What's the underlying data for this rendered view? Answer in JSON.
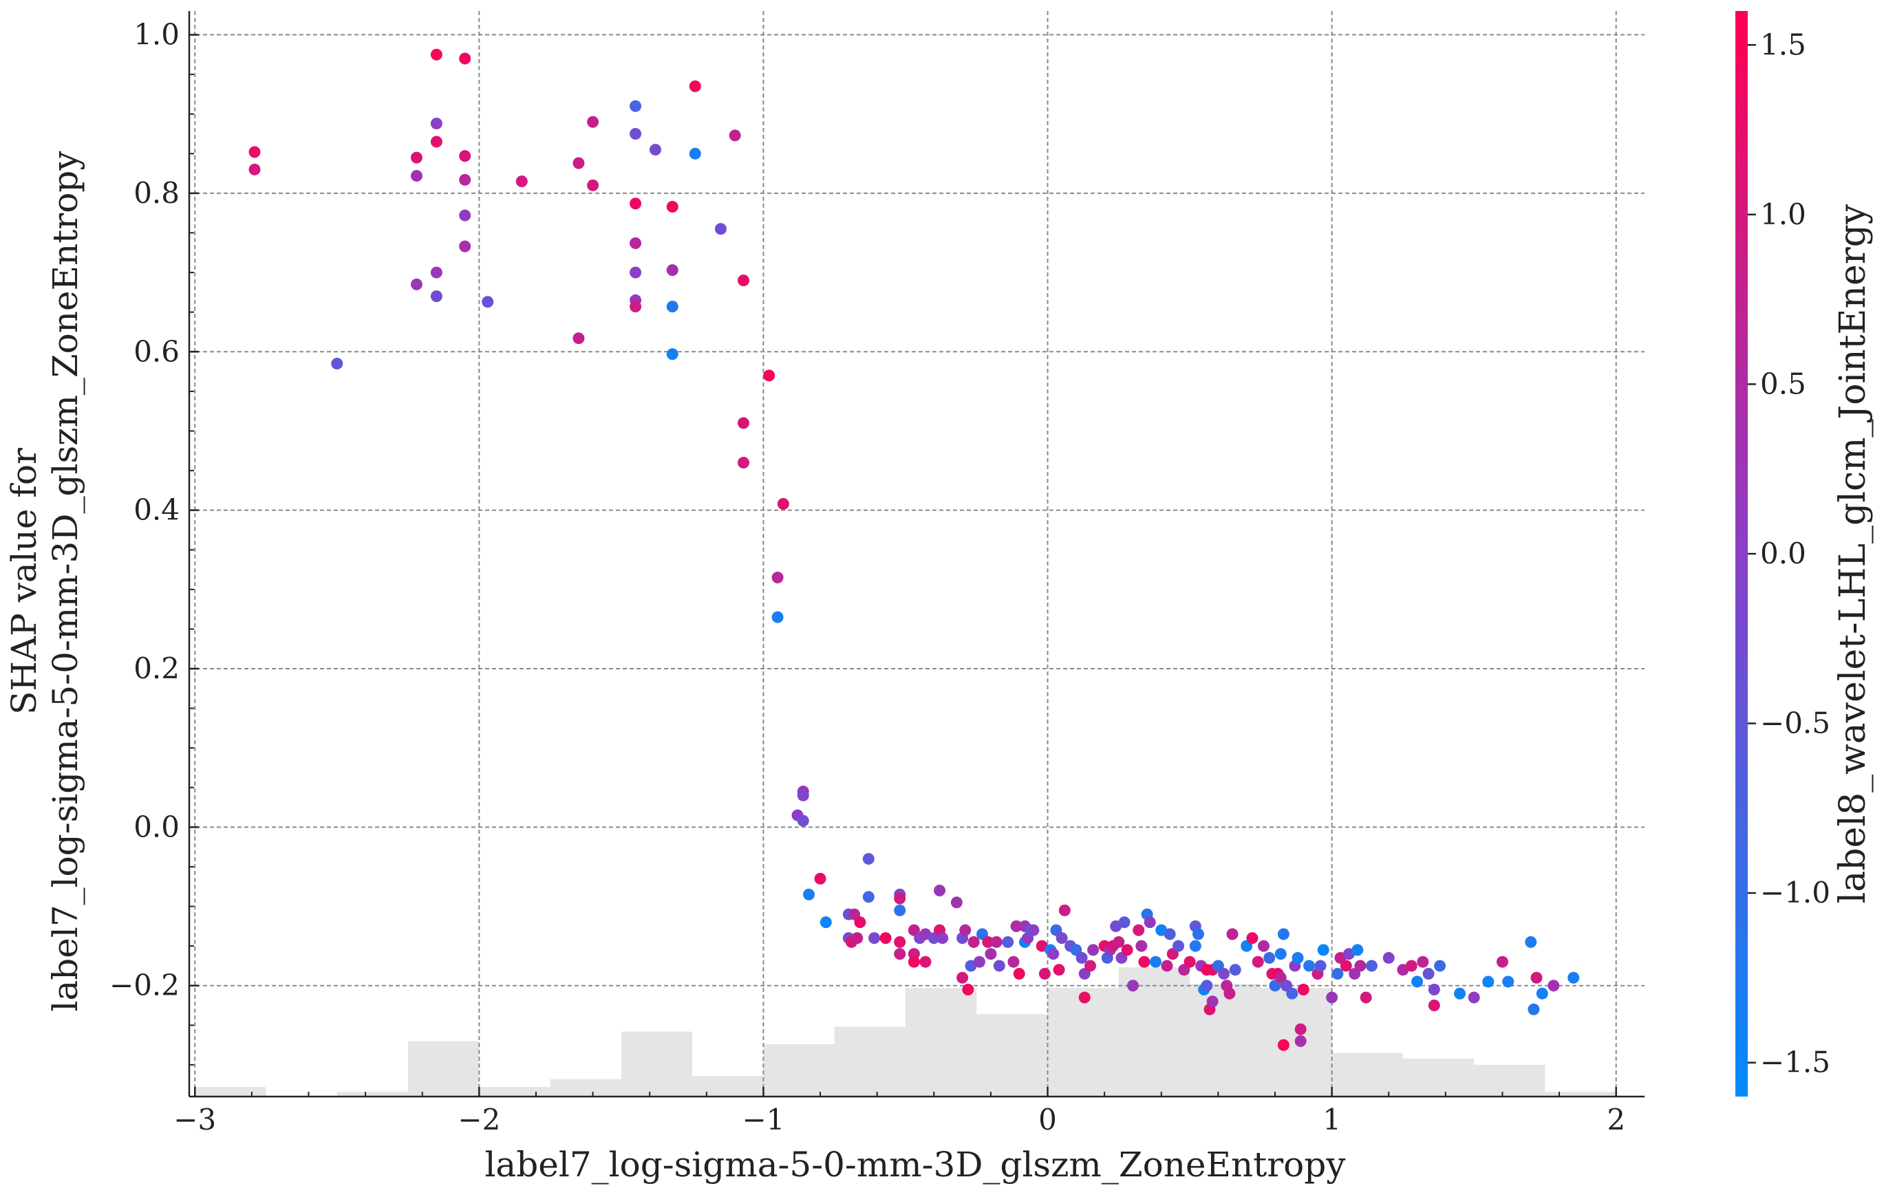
{
  "chart_data": {
    "type": "scatter",
    "title": "",
    "xlabel": "label7_log-sigma-5-0-mm-3D_glszm_ZoneEntropy",
    "ylabel_lines": [
      "SHAP value for",
      "label7_log-sigma-5-0-mm-3D_glszm_ZoneEntropy"
    ],
    "xlim": [
      -3.02,
      2.1
    ],
    "ylim": [
      -0.34,
      1.03
    ],
    "x_ticks": [
      -3,
      -2,
      -1,
      0,
      1,
      2
    ],
    "x_tick_labels": [
      "−3",
      "−2",
      "−1",
      "0",
      "1",
      "2"
    ],
    "y_ticks": [
      -0.2,
      0.0,
      0.2,
      0.4,
      0.6,
      0.8,
      1.0
    ],
    "y_tick_labels": [
      "−0.2",
      "0.0",
      "0.2",
      "0.4",
      "0.6",
      "0.8",
      "1.0"
    ],
    "grid": true,
    "colorbar": {
      "label": "label8_wavelet-LHL_glcm_JointEnergy",
      "range": [
        -1.6,
        1.6
      ],
      "ticks": [
        -1.5,
        -1.0,
        -0.5,
        0.0,
        0.5,
        1.0,
        1.5
      ],
      "tick_labels": [
        "−1.5",
        "−1.0",
        "−0.5",
        "0.0",
        "0.5",
        "1.0",
        "1.5"
      ],
      "color_low": "#008bfb",
      "color_mid": "#8a3fc8",
      "color_high": "#ff0051"
    },
    "histogram": {
      "color": "#e5e5e5",
      "bins": [
        {
          "x0": -3.0,
          "x1": -2.75,
          "h": 0.012
        },
        {
          "x0": -2.5,
          "x1": -2.25,
          "h": 0.006
        },
        {
          "x0": -2.25,
          "x1": -2.0,
          "h": 0.07
        },
        {
          "x0": -2.0,
          "x1": -1.75,
          "h": 0.012
        },
        {
          "x0": -1.75,
          "x1": -1.5,
          "h": 0.022
        },
        {
          "x0": -1.5,
          "x1": -1.25,
          "h": 0.082
        },
        {
          "x0": -1.25,
          "x1": -1.0,
          "h": 0.026
        },
        {
          "x0": -1.0,
          "x1": -0.75,
          "h": 0.066
        },
        {
          "x0": -0.75,
          "x1": -0.5,
          "h": 0.088
        },
        {
          "x0": -0.5,
          "x1": -0.25,
          "h": 0.137
        },
        {
          "x0": -0.25,
          "x1": 0.0,
          "h": 0.104
        },
        {
          "x0": 0.0,
          "x1": 0.25,
          "h": 0.137
        },
        {
          "x0": 0.25,
          "x1": 0.5,
          "h": 0.163
        },
        {
          "x0": 0.5,
          "x1": 0.75,
          "h": 0.142
        },
        {
          "x0": 0.75,
          "x1": 1.0,
          "h": 0.137
        },
        {
          "x0": 1.0,
          "x1": 1.25,
          "h": 0.055
        },
        {
          "x0": 1.25,
          "x1": 1.5,
          "h": 0.048
        },
        {
          "x0": 1.5,
          "x1": 1.75,
          "h": 0.04
        },
        {
          "x0": 1.75,
          "x1": 2.0,
          "h": 0.006
        }
      ]
    },
    "points": [
      [
        -2.79,
        0.852,
        1.3
      ],
      [
        -2.79,
        0.83,
        1.0
      ],
      [
        -2.5,
        0.585,
        -0.5
      ],
      [
        -2.22,
        0.845,
        1.1
      ],
      [
        -2.22,
        0.822,
        0.3
      ],
      [
        -2.22,
        0.685,
        0.2
      ],
      [
        -2.15,
        0.975,
        1.5
      ],
      [
        -2.15,
        0.888,
        0.0
      ],
      [
        -2.15,
        0.865,
        1.2
      ],
      [
        -2.15,
        0.7,
        0.2
      ],
      [
        -2.15,
        0.67,
        -0.3
      ],
      [
        -2.05,
        0.97,
        1.4
      ],
      [
        -2.05,
        0.847,
        1.1
      ],
      [
        -2.05,
        0.817,
        0.6
      ],
      [
        -2.05,
        0.772,
        0.1
      ],
      [
        -2.05,
        0.733,
        0.4
      ],
      [
        -1.97,
        0.663,
        -0.4
      ],
      [
        -1.85,
        0.815,
        1.0
      ],
      [
        -1.65,
        0.838,
        0.9
      ],
      [
        -1.65,
        0.617,
        0.8
      ],
      [
        -1.6,
        0.89,
        0.8
      ],
      [
        -1.6,
        0.81,
        1.0
      ],
      [
        -1.45,
        0.91,
        -0.8
      ],
      [
        -1.45,
        0.875,
        -0.3
      ],
      [
        -1.45,
        0.787,
        1.4
      ],
      [
        -1.45,
        0.737,
        0.6
      ],
      [
        -1.45,
        0.7,
        0.0
      ],
      [
        -1.45,
        0.665,
        0.2
      ],
      [
        -1.45,
        0.657,
        0.9
      ],
      [
        -1.38,
        0.855,
        -0.2
      ],
      [
        -1.32,
        0.783,
        1.4
      ],
      [
        -1.32,
        0.703,
        0.4
      ],
      [
        -1.32,
        0.657,
        -1.2
      ],
      [
        -1.32,
        0.597,
        -1.4
      ],
      [
        -1.24,
        0.935,
        1.5
      ],
      [
        -1.24,
        0.85,
        -1.3
      ],
      [
        -1.15,
        0.755,
        -0.3
      ],
      [
        -1.1,
        0.873,
        0.7
      ],
      [
        -1.07,
        0.69,
        1.3
      ],
      [
        -1.07,
        0.51,
        1.1
      ],
      [
        -1.07,
        0.46,
        1.0
      ],
      [
        -0.98,
        0.57,
        1.5
      ],
      [
        -0.95,
        0.315,
        0.6
      ],
      [
        -0.95,
        0.265,
        -1.3
      ],
      [
        -0.93,
        0.408,
        1.2
      ],
      [
        -0.88,
        0.015,
        0.0
      ],
      [
        -0.86,
        0.045,
        0.2
      ],
      [
        -0.86,
        0.04,
        -0.1
      ],
      [
        -0.86,
        0.008,
        -0.3
      ],
      [
        -0.84,
        -0.085,
        -1.3
      ],
      [
        -0.8,
        -0.065,
        1.3
      ],
      [
        -0.78,
        -0.12,
        -1.4
      ],
      [
        -0.7,
        -0.11,
        -0.4
      ],
      [
        -0.7,
        -0.14,
        -0.2
      ],
      [
        -0.69,
        -0.145,
        1.1
      ],
      [
        -0.68,
        -0.11,
        0.6
      ],
      [
        -0.67,
        -0.14,
        0.8
      ],
      [
        -0.66,
        -0.12,
        1.3
      ],
      [
        -0.63,
        -0.04,
        -0.5
      ],
      [
        -0.63,
        -0.088,
        -0.8
      ],
      [
        -0.61,
        -0.14,
        -0.2
      ],
      [
        -0.57,
        -0.14,
        1.4
      ],
      [
        -0.52,
        -0.085,
        0.0
      ],
      [
        -0.52,
        -0.09,
        1.0
      ],
      [
        -0.52,
        -0.105,
        -1.1
      ],
      [
        -0.52,
        -0.145,
        1.2
      ],
      [
        -0.52,
        -0.16,
        0.8
      ],
      [
        -0.47,
        -0.13,
        0.8
      ],
      [
        -0.47,
        -0.16,
        0.9
      ],
      [
        -0.47,
        -0.17,
        1.4
      ],
      [
        -0.45,
        -0.14,
        -0.1
      ],
      [
        -0.43,
        -0.135,
        0.2
      ],
      [
        -0.43,
        -0.17,
        1.1
      ],
      [
        -0.4,
        -0.14,
        -0.3
      ],
      [
        -0.38,
        -0.08,
        0.2
      ],
      [
        -0.38,
        -0.13,
        1.2
      ],
      [
        -0.37,
        -0.14,
        0.0
      ],
      [
        -0.32,
        -0.095,
        0.3
      ],
      [
        -0.3,
        -0.14,
        -0.3
      ],
      [
        -0.3,
        -0.19,
        1.0
      ],
      [
        -0.29,
        -0.13,
        0.6
      ],
      [
        -0.28,
        -0.205,
        1.4
      ],
      [
        -0.27,
        -0.175,
        -0.6
      ],
      [
        -0.26,
        -0.145,
        0.8
      ],
      [
        -0.24,
        -0.17,
        0.1
      ],
      [
        -0.23,
        -0.135,
        -1.1
      ],
      [
        -0.21,
        -0.145,
        1.0
      ],
      [
        -0.2,
        -0.16,
        0.4
      ],
      [
        -0.18,
        -0.145,
        0.7
      ],
      [
        -0.17,
        -0.175,
        -0.3
      ],
      [
        -0.14,
        -0.145,
        -0.6
      ],
      [
        -0.12,
        -0.17,
        0.6
      ],
      [
        -0.11,
        -0.125,
        0.5
      ],
      [
        -0.1,
        -0.185,
        1.4
      ],
      [
        -0.08,
        -0.145,
        -1.4
      ],
      [
        -0.08,
        -0.125,
        0.3
      ],
      [
        -0.07,
        -0.14,
        0.1
      ],
      [
        -0.06,
        -0.13,
        -0.7
      ],
      [
        -0.05,
        -0.13,
        0.0
      ],
      [
        -0.02,
        -0.15,
        1.2
      ],
      [
        -0.01,
        -0.185,
        1.1
      ],
      [
        0.01,
        -0.155,
        -1.4
      ],
      [
        0.02,
        -0.16,
        0.0
      ],
      [
        0.03,
        -0.13,
        -0.9
      ],
      [
        0.04,
        -0.18,
        1.2
      ],
      [
        0.05,
        -0.14,
        -0.2
      ],
      [
        0.06,
        -0.105,
        0.9
      ],
      [
        0.08,
        -0.15,
        -0.4
      ],
      [
        0.1,
        -0.155,
        -1.0
      ],
      [
        0.12,
        -0.165,
        -0.3
      ],
      [
        0.13,
        -0.185,
        0.0
      ],
      [
        0.13,
        -0.215,
        1.3
      ],
      [
        0.15,
        -0.175,
        1.0
      ],
      [
        0.16,
        -0.155,
        0.2
      ],
      [
        0.2,
        -0.15,
        1.3
      ],
      [
        0.21,
        -0.165,
        -0.7
      ],
      [
        0.22,
        -0.155,
        0.1
      ],
      [
        0.23,
        -0.15,
        1.0
      ],
      [
        0.24,
        -0.125,
        -0.3
      ],
      [
        0.25,
        -0.145,
        0.8
      ],
      [
        0.26,
        -0.165,
        0.0
      ],
      [
        0.27,
        -0.12,
        -0.5
      ],
      [
        0.28,
        -0.155,
        1.2
      ],
      [
        0.3,
        -0.2,
        0.2
      ],
      [
        0.32,
        -0.13,
        1.0
      ],
      [
        0.33,
        -0.15,
        0.4
      ],
      [
        0.34,
        -0.17,
        1.4
      ],
      [
        0.35,
        -0.11,
        -1.1
      ],
      [
        0.36,
        -0.12,
        0.1
      ],
      [
        0.38,
        -0.17,
        -1.3
      ],
      [
        0.4,
        -0.13,
        -1.4
      ],
      [
        0.42,
        -0.175,
        0.8
      ],
      [
        0.43,
        -0.135,
        -0.7
      ],
      [
        0.44,
        -0.16,
        1.0
      ],
      [
        0.46,
        -0.15,
        -0.5
      ],
      [
        0.48,
        -0.18,
        0.6
      ],
      [
        0.5,
        -0.17,
        1.2
      ],
      [
        0.52,
        -0.125,
        -0.5
      ],
      [
        0.52,
        -0.15,
        -1.2
      ],
      [
        0.53,
        -0.135,
        -1.1
      ],
      [
        0.54,
        -0.175,
        0.2
      ],
      [
        0.55,
        -0.205,
        -1.4
      ],
      [
        0.56,
        -0.18,
        1.4
      ],
      [
        0.56,
        -0.2,
        -0.6
      ],
      [
        0.57,
        -0.23,
        1.2
      ],
      [
        0.58,
        -0.18,
        1.3
      ],
      [
        0.58,
        -0.22,
        0.3
      ],
      [
        0.6,
        -0.175,
        -1.0
      ],
      [
        0.62,
        -0.185,
        -0.2
      ],
      [
        0.63,
        -0.2,
        0.7
      ],
      [
        0.64,
        -0.21,
        0.8
      ],
      [
        0.65,
        -0.135,
        0.7
      ],
      [
        0.66,
        -0.18,
        -0.6
      ],
      [
        0.7,
        -0.15,
        -1.4
      ],
      [
        0.72,
        -0.14,
        1.3
      ],
      [
        0.74,
        -0.17,
        1.0
      ],
      [
        0.76,
        -0.15,
        0.5
      ],
      [
        0.78,
        -0.165,
        -0.9
      ],
      [
        0.79,
        -0.185,
        1.2
      ],
      [
        0.8,
        -0.2,
        -1.0
      ],
      [
        0.81,
        -0.185,
        1.4
      ],
      [
        0.82,
        -0.16,
        -1.3
      ],
      [
        0.82,
        -0.19,
        0.6
      ],
      [
        0.83,
        -0.135,
        -1.2
      ],
      [
        0.83,
        -0.275,
        1.5
      ],
      [
        0.84,
        -0.2,
        -0.3
      ],
      [
        0.86,
        -0.21,
        -0.8
      ],
      [
        0.87,
        -0.175,
        0.0
      ],
      [
        0.88,
        -0.165,
        -1.3
      ],
      [
        0.89,
        -0.255,
        0.9
      ],
      [
        0.89,
        -0.27,
        0.4
      ],
      [
        0.9,
        -0.205,
        1.4
      ],
      [
        0.92,
        -0.175,
        -1.2
      ],
      [
        0.95,
        -0.185,
        0.9
      ],
      [
        0.96,
        -0.175,
        -0.6
      ],
      [
        0.97,
        -0.155,
        -1.5
      ],
      [
        1.0,
        -0.215,
        0.2
      ],
      [
        1.02,
        -0.185,
        -1.0
      ],
      [
        1.03,
        -0.165,
        0.8
      ],
      [
        1.05,
        -0.175,
        1.2
      ],
      [
        1.06,
        -0.16,
        -0.1
      ],
      [
        1.08,
        -0.185,
        0.3
      ],
      [
        1.09,
        -0.155,
        -1.4
      ],
      [
        1.1,
        -0.175,
        0.6
      ],
      [
        1.12,
        -0.215,
        1.0
      ],
      [
        1.14,
        -0.175,
        -0.7
      ],
      [
        1.2,
        -0.165,
        -0.1
      ],
      [
        1.25,
        -0.18,
        0.5
      ],
      [
        1.28,
        -0.175,
        1.0
      ],
      [
        1.3,
        -0.195,
        -1.4
      ],
      [
        1.32,
        -0.17,
        0.7
      ],
      [
        1.34,
        -0.185,
        -0.4
      ],
      [
        1.36,
        -0.205,
        -0.2
      ],
      [
        1.36,
        -0.225,
        1.1
      ],
      [
        1.38,
        -0.175,
        -0.9
      ],
      [
        1.45,
        -0.21,
        -1.4
      ],
      [
        1.5,
        -0.215,
        0.1
      ],
      [
        1.55,
        -0.195,
        -1.5
      ],
      [
        1.6,
        -0.17,
        0.8
      ],
      [
        1.62,
        -0.195,
        -1.3
      ],
      [
        1.7,
        -0.145,
        -1.3
      ],
      [
        1.71,
        -0.23,
        -1.2
      ],
      [
        1.72,
        -0.19,
        1.0
      ],
      [
        1.74,
        -0.21,
        -1.4
      ],
      [
        1.78,
        -0.2,
        0.3
      ],
      [
        1.85,
        -0.19,
        -1.3
      ]
    ]
  }
}
